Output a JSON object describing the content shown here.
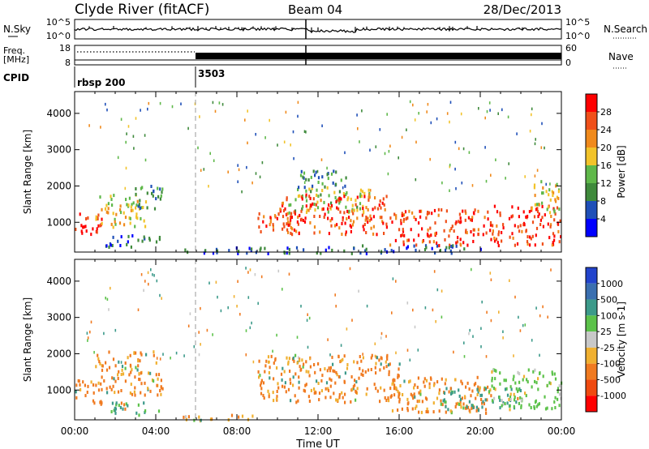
{
  "header": {
    "station": "Clyde River (fitACF)",
    "beam": "Beam 04",
    "date": "28/Dec/2013"
  },
  "top_panels": {
    "nsky_label": "N.Sky",
    "nsky_ticks": [
      "10^5",
      "10^0"
    ],
    "nsearch_label": "N.Search",
    "nsearch_ticks": [
      "10^5",
      "10^0"
    ],
    "freq_label_line1": "Freq.",
    "freq_label_line2": "[MHz]",
    "freq_ticks": [
      "18",
      "8"
    ],
    "nave_label": "Nave",
    "nave_ticks": [
      "60",
      "0"
    ],
    "cpid_label": "CPID",
    "cpid_segments": [
      {
        "label": "rbsp 200",
        "start_hour": 0
      },
      {
        "label": "3503",
        "start_hour": 6
      }
    ]
  },
  "colors": {
    "power_scale": [
      "#0000ff",
      "#1f4fb8",
      "#3f8a3c",
      "#5fb84a",
      "#f2c32a",
      "#f08a1c",
      "#f0501a",
      "#ff0000"
    ],
    "velocity_scale": [
      "#2244cc",
      "#3a6fb0",
      "#3c9a8a",
      "#5cc24a",
      "#c8c8c8",
      "#f0b030",
      "#f07a20",
      "#f04a10",
      "#ff0000"
    ]
  },
  "chart_data": [
    {
      "type": "heatmap",
      "title": "Power",
      "ylabel": "Slant Range [km]",
      "xlim": [
        0,
        24
      ],
      "ylim": [
        180,
        4600
      ],
      "yticks": [
        "1000",
        "2000",
        "3000",
        "4000"
      ],
      "colorbar_label": "Power [dB]",
      "colorbar_ticks": [
        "4",
        "8",
        "12",
        "16",
        "20",
        "24",
        "28"
      ],
      "colorbar_range": [
        0,
        32
      ],
      "echo_regions": [
        {
          "t0": 0.0,
          "t1": 1.3,
          "r0": 650,
          "r1": 1350,
          "value": 29
        },
        {
          "t0": 1.0,
          "t1": 3.5,
          "r0": 900,
          "r1": 1800,
          "value": 17
        },
        {
          "t0": 2.8,
          "t1": 4.3,
          "r0": 1400,
          "r1": 2100,
          "value": 10
        },
        {
          "t0": 1.5,
          "t1": 4.2,
          "r0": 350,
          "r1": 700,
          "value": 7
        },
        {
          "t0": 5.3,
          "t1": 8.8,
          "r0": 180,
          "r1": 360,
          "value": 5
        },
        {
          "t0": 9.0,
          "t1": 11.0,
          "r0": 700,
          "r1": 1300,
          "value": 27
        },
        {
          "t0": 10.5,
          "t1": 14.5,
          "r0": 1300,
          "r1": 2000,
          "value": 15
        },
        {
          "t0": 11.0,
          "t1": 13.5,
          "r0": 2000,
          "r1": 2500,
          "value": 10
        },
        {
          "t0": 10.0,
          "t1": 15.5,
          "r0": 700,
          "r1": 1800,
          "value": 27
        },
        {
          "t0": 15.5,
          "t1": 20.5,
          "r0": 400,
          "r1": 1400,
          "value": 27
        },
        {
          "t0": 20.5,
          "t1": 24.0,
          "r0": 400,
          "r1": 1500,
          "value": 28
        },
        {
          "t0": 22.5,
          "t1": 24.0,
          "r0": 1300,
          "r1": 2200,
          "value": 18
        },
        {
          "t0": 14.0,
          "t1": 20.0,
          "r0": 180,
          "r1": 400,
          "value": 6
        },
        {
          "t0": 8.5,
          "t1": 14.0,
          "r0": 180,
          "r1": 350,
          "value": 6
        }
      ]
    },
    {
      "type": "heatmap",
      "title": "Velocity",
      "xlabel": "Time UT",
      "ylabel": "Slant Range [km]",
      "xlim": [
        0,
        24
      ],
      "ylim": [
        180,
        4600
      ],
      "xticks": [
        "00:00",
        "04:00",
        "08:00",
        "12:00",
        "16:00",
        "20:00",
        "00:00"
      ],
      "yticks": [
        "1000",
        "2000",
        "3000",
        "4000"
      ],
      "colorbar_label": "Velocity [m s-1]",
      "colorbar_ticks": [
        "1000",
        "500",
        "100",
        "25",
        "-25",
        "-100",
        "-500",
        "-1000"
      ],
      "echo_regions": [
        {
          "t0": 0.0,
          "t1": 1.3,
          "r0": 650,
          "r1": 1350,
          "value": -150
        },
        {
          "t0": 1.0,
          "t1": 4.3,
          "r0": 900,
          "r1": 2100,
          "value": -120
        },
        {
          "t0": 1.5,
          "t1": 4.2,
          "r0": 350,
          "r1": 700,
          "value": 110
        },
        {
          "t0": 9.0,
          "t1": 16.0,
          "r0": 700,
          "r1": 2000,
          "value": -140
        },
        {
          "t0": 15.5,
          "t1": 20.5,
          "r0": 400,
          "r1": 1400,
          "value": -110
        },
        {
          "t0": 18.0,
          "t1": 22.0,
          "r0": 500,
          "r1": 1100,
          "value": 130
        },
        {
          "t0": 20.5,
          "t1": 24.0,
          "r0": 500,
          "r1": 1600,
          "value": 40
        },
        {
          "t0": 5.3,
          "t1": 8.8,
          "r0": 180,
          "r1": 360,
          "value": -60
        }
      ]
    }
  ]
}
